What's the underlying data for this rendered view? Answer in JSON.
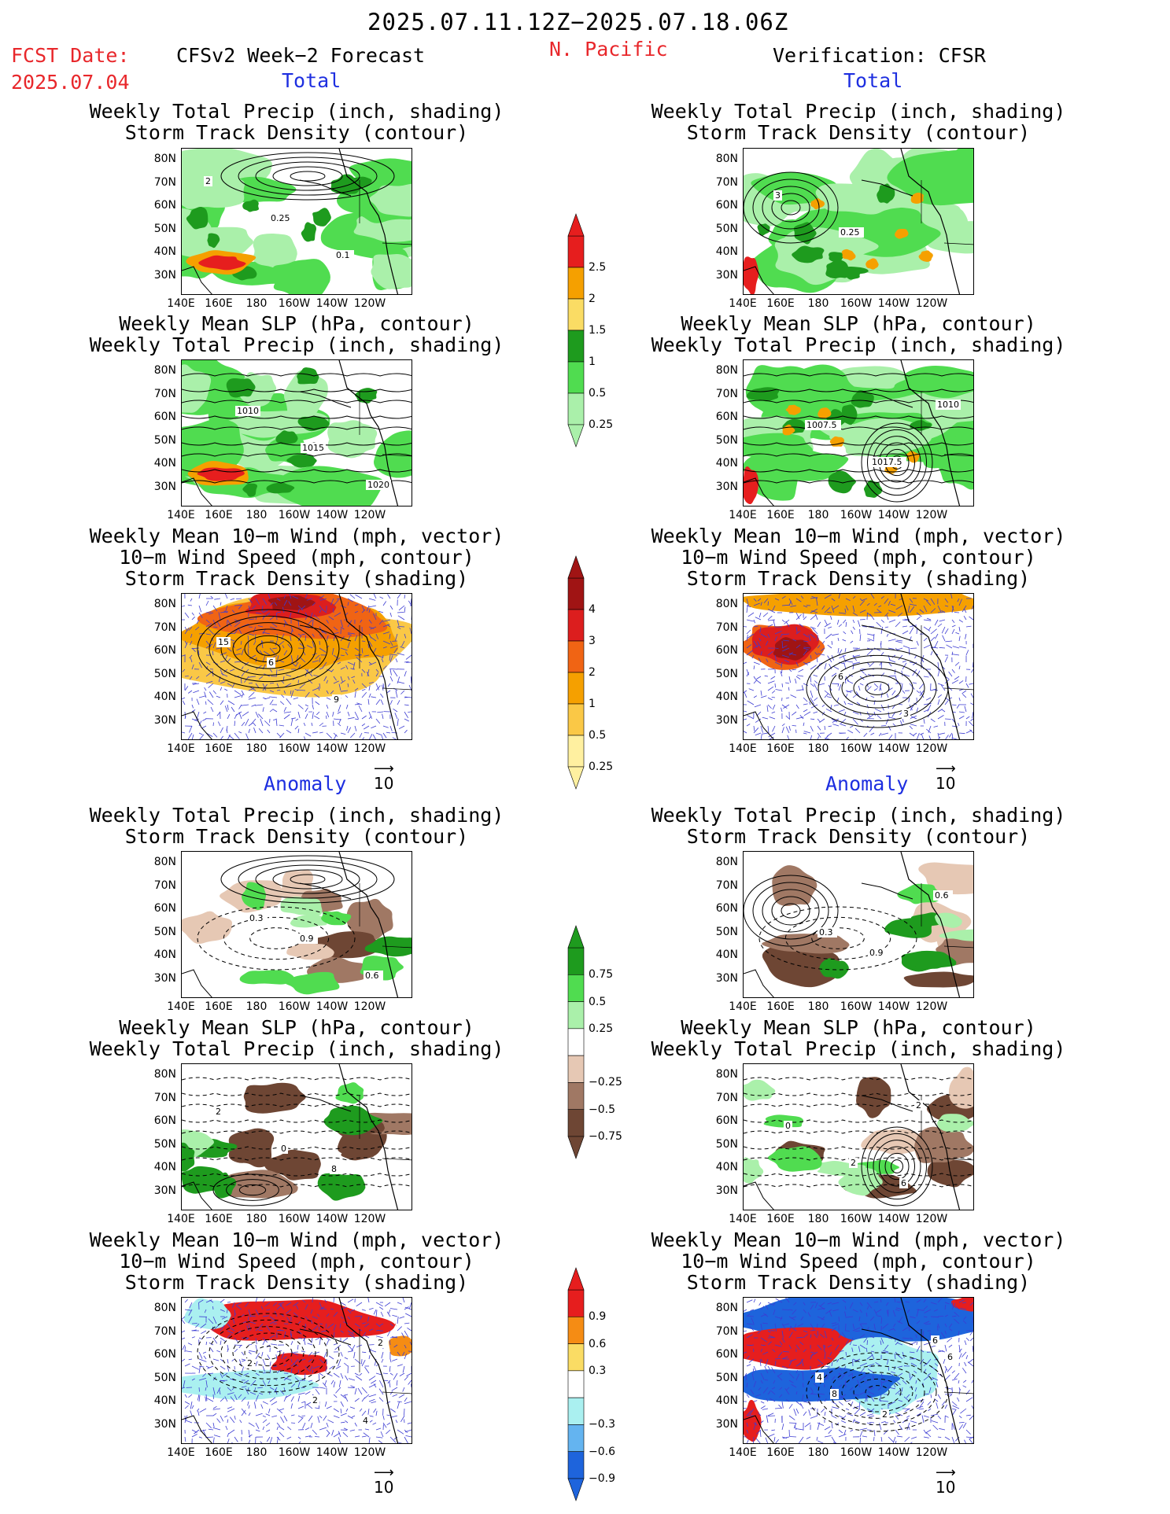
{
  "header": {
    "date_range": "2025.07.11.12Z−2025.07.18.06Z",
    "fcst_label": "FCST Date:",
    "fcst_date": "2025.07.04",
    "left_title": "CFSv2 Week−2 Forecast",
    "region": "N. Pacific",
    "right_title": "Verification: CFSR",
    "total_label": "Total",
    "anomaly_label": "Anomaly"
  },
  "titles": {
    "precip_track": [
      "Weekly Total Precip (inch, shading)",
      "Storm Track Density (contour)"
    ],
    "slp_precip": [
      "Weekly Mean SLP (hPa, contour)",
      "Weekly Total Precip (inch, shading)"
    ],
    "wind": [
      "Weekly Mean 10−m Wind (mph, vector)",
      "10−m Wind Speed (mph, contour)",
      "Storm Track Density (shading)"
    ]
  },
  "axes": {
    "lat_labels": [
      "80N",
      "70N",
      "60N",
      "50N",
      "40N",
      "30N"
    ],
    "lon_labels": [
      "140E",
      "160E",
      "180",
      "160W",
      "140W",
      "120W"
    ]
  },
  "contour_labels": {
    "fc_total_precip": [
      "2",
      "0.25",
      "0.1"
    ],
    "ver_total_precip": [
      "3",
      "0.25"
    ],
    "fc_total_slp": [
      "1010",
      "1015",
      "1020"
    ],
    "ver_total_slp": [
      "1007.5",
      "1017.5",
      "1010"
    ],
    "fc_total_wind": [
      "6",
      "9",
      "15"
    ],
    "ver_total_wind": [
      "6",
      "3"
    ],
    "fc_anom_precip": [
      "0.9",
      "0.6",
      "0.3"
    ],
    "ver_anom_precip": [
      "0.9",
      "0.6",
      "0.3"
    ],
    "fc_anom_slp": [
      "8",
      "2",
      "0"
    ],
    "ver_anom_slp": [
      "6",
      "0",
      "2",
      "2"
    ],
    "fc_anom_wind": [
      "4",
      "2",
      "2",
      "2"
    ],
    "ver_anom_wind": [
      "6",
      "4",
      "2",
      "6",
      "8"
    ]
  },
  "colorbars": {
    "precip_total": {
      "labels": [
        "2.5",
        "2",
        "1.5",
        "1",
        "0.5",
        "0.25"
      ],
      "colors": [
        "#e61e1e",
        "#f5a000",
        "#fadc64",
        "#1e9b1e",
        "#50dc50",
        "#aaf0aa"
      ]
    },
    "track_total": {
      "labels": [
        "4",
        "3",
        "2",
        "1",
        "0.5",
        "0.25"
      ],
      "colors": [
        "#a01414",
        "#dc1e1e",
        "#f06414",
        "#f5a000",
        "#fac846",
        "#fff0a0"
      ]
    },
    "precip_anom": {
      "labels": [
        "0.75",
        "0.5",
        "0.25",
        "−0.25",
        "−0.5",
        "−0.75"
      ],
      "colors": [
        "#1e9b1e",
        "#50dc50",
        "#aaf0aa",
        "#ffffff",
        "#e6c8b4",
        "#a07864",
        "#6e4634"
      ]
    },
    "track_anom": {
      "labels": [
        "0.9",
        "0.6",
        "0.3",
        "−0.3",
        "−0.6",
        "−0.9"
      ],
      "colors": [
        "#e61e1e",
        "#f58c14",
        "#fadc64",
        "#ffffff",
        "#aaf0f0",
        "#64b4f0",
        "#1e64dc"
      ]
    }
  },
  "ref_vector": "10"
}
